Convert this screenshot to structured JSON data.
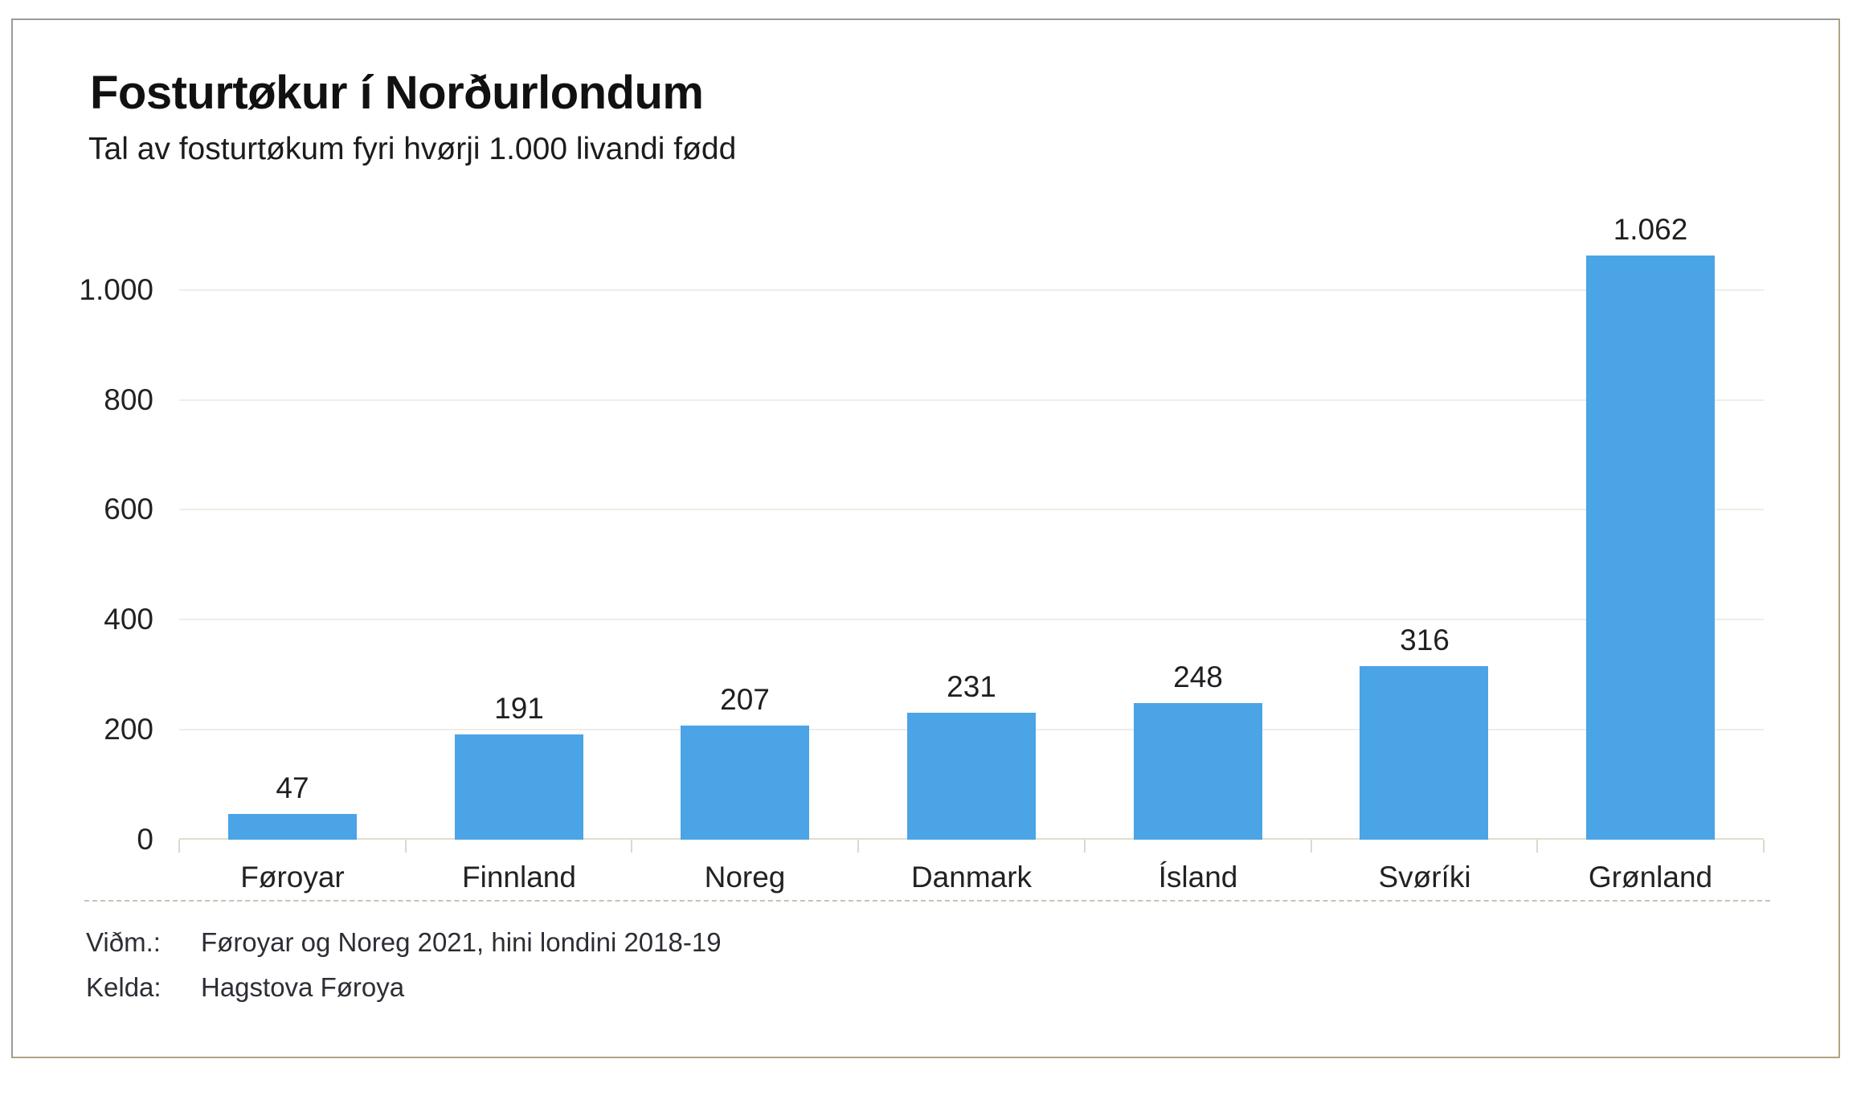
{
  "chart_data": {
    "type": "bar",
    "title": "Fosturtøkur í Norðurlondum",
    "subtitle": "Tal av fosturtøkum fyri hvørji 1.000 livandi fødd",
    "categories": [
      "Føroyar",
      "Finnland",
      "Noreg",
      "Danmark",
      "Ísland",
      "Svøríki",
      "Grønland"
    ],
    "values": [
      47,
      191,
      207,
      231,
      248,
      316,
      1062
    ],
    "value_labels": [
      "47",
      "191",
      "207",
      "231",
      "248",
      "316",
      "1.062"
    ],
    "y_ticks": [
      {
        "value": 0,
        "label": "0"
      },
      {
        "value": 200,
        "label": "200"
      },
      {
        "value": 400,
        "label": "400"
      },
      {
        "value": 600,
        "label": "600"
      },
      {
        "value": 800,
        "label": "800"
      },
      {
        "value": 1000,
        "label": "1.000"
      }
    ],
    "ylim": [
      0,
      1100
    ],
    "xlabel": "",
    "ylabel": "",
    "grid": "horizontal",
    "legend": "none",
    "bar_color": "#4BA4E5"
  },
  "footnotes": {
    "vidm_label": "Viðm.:",
    "vidm_text": "Føroyar og Noreg 2021, hini londini 2018-19",
    "kelda_label": "Kelda:",
    "kelda_text": "Hagstova Føroya"
  },
  "colors": {
    "bar": "#4BA4E5",
    "gridline": "#efede5",
    "axis": "#e0ddd0",
    "tick": "#ddd9ca",
    "divider": "#c8c4b2"
  }
}
